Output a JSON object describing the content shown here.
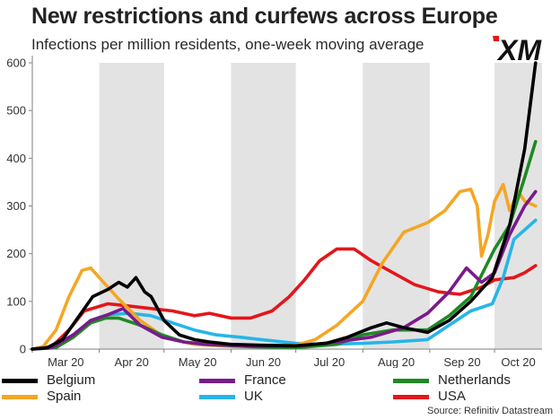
{
  "title": "New restrictions and curfews across Europe",
  "subtitle": "Infections per million residents, one-week moving average",
  "logo_text": "XM",
  "source": "Source: Refinitiv Datastream",
  "colors": {
    "Belgium": "#000000",
    "France": "#7a1a8c",
    "Netherlands": "#1e8a24",
    "Spain": "#f5a623",
    "UK": "#27b5e8",
    "USA": "#e3161b",
    "shade": "#e3e3e3",
    "axis": "#7f7f7f"
  },
  "chart_data": {
    "type": "line",
    "title": "New restrictions and curfews across Europe",
    "subtitle": "Infections per million residents, one-week moving average",
    "xlabel": "",
    "ylabel": "",
    "x_tick_labels": [
      "Mar 20",
      "Apr 20",
      "May 20",
      "Jun 20",
      "Jul 20",
      "Aug 20",
      "Sep 20",
      "Oct 20"
    ],
    "ylim": [
      0,
      600
    ],
    "y_ticks": [
      0,
      100,
      200,
      300,
      400,
      500,
      600
    ],
    "legend_position": "bottom",
    "shaded_months": [
      "Apr 20",
      "Jun 20",
      "Aug 20",
      "Oct 20"
    ],
    "series": [
      {
        "name": "Belgium",
        "points": [
          [
            "2020-03-01",
            0
          ],
          [
            "2020-03-08",
            3
          ],
          [
            "2020-03-15",
            20
          ],
          [
            "2020-03-22",
            65
          ],
          [
            "2020-03-29",
            110
          ],
          [
            "2020-04-05",
            125
          ],
          [
            "2020-04-10",
            140
          ],
          [
            "2020-04-14",
            130
          ],
          [
            "2020-04-18",
            150
          ],
          [
            "2020-04-22",
            120
          ],
          [
            "2020-04-25",
            110
          ],
          [
            "2020-05-01",
            60
          ],
          [
            "2020-05-08",
            30
          ],
          [
            "2020-05-15",
            20
          ],
          [
            "2020-05-22",
            15
          ],
          [
            "2020-06-01",
            10
          ],
          [
            "2020-06-15",
            8
          ],
          [
            "2020-07-01",
            7
          ],
          [
            "2020-07-15",
            12
          ],
          [
            "2020-07-25",
            25
          ],
          [
            "2020-08-05",
            45
          ],
          [
            "2020-08-12",
            55
          ],
          [
            "2020-08-20",
            45
          ],
          [
            "2020-08-31",
            35
          ],
          [
            "2020-09-10",
            60
          ],
          [
            "2020-09-20",
            100
          ],
          [
            "2020-09-30",
            150
          ],
          [
            "2020-10-08",
            260
          ],
          [
            "2020-10-15",
            420
          ],
          [
            "2020-10-20",
            600
          ]
        ]
      },
      {
        "name": "France",
        "points": [
          [
            "2020-03-01",
            0
          ],
          [
            "2020-03-10",
            3
          ],
          [
            "2020-03-20",
            30
          ],
          [
            "2020-03-28",
            60
          ],
          [
            "2020-04-05",
            72
          ],
          [
            "2020-04-12",
            85
          ],
          [
            "2020-04-20",
            50
          ],
          [
            "2020-04-30",
            25
          ],
          [
            "2020-05-10",
            15
          ],
          [
            "2020-05-20",
            10
          ],
          [
            "2020-06-10",
            6
          ],
          [
            "2020-07-01",
            6
          ],
          [
            "2020-07-20",
            15
          ],
          [
            "2020-08-05",
            25
          ],
          [
            "2020-08-20",
            45
          ],
          [
            "2020-08-31",
            75
          ],
          [
            "2020-09-10",
            120
          ],
          [
            "2020-09-18",
            170
          ],
          [
            "2020-09-25",
            140
          ],
          [
            "2020-10-01",
            160
          ],
          [
            "2020-10-08",
            240
          ],
          [
            "2020-10-15",
            300
          ],
          [
            "2020-10-20",
            330
          ]
        ]
      },
      {
        "name": "Netherlands",
        "points": [
          [
            "2020-03-01",
            0
          ],
          [
            "2020-03-12",
            3
          ],
          [
            "2020-03-20",
            25
          ],
          [
            "2020-03-28",
            55
          ],
          [
            "2020-04-04",
            65
          ],
          [
            "2020-04-10",
            65
          ],
          [
            "2020-04-20",
            50
          ],
          [
            "2020-04-30",
            30
          ],
          [
            "2020-05-10",
            15
          ],
          [
            "2020-05-20",
            10
          ],
          [
            "2020-06-10",
            5
          ],
          [
            "2020-07-01",
            3
          ],
          [
            "2020-07-20",
            10
          ],
          [
            "2020-08-01",
            30
          ],
          [
            "2020-08-15",
            40
          ],
          [
            "2020-08-31",
            40
          ],
          [
            "2020-09-10",
            70
          ],
          [
            "2020-09-20",
            110
          ],
          [
            "2020-10-01",
            210
          ],
          [
            "2020-10-08",
            260
          ],
          [
            "2020-10-15",
            360
          ],
          [
            "2020-10-20",
            435
          ]
        ]
      },
      {
        "name": "Spain",
        "points": [
          [
            "2020-03-01",
            0
          ],
          [
            "2020-03-06",
            5
          ],
          [
            "2020-03-12",
            40
          ],
          [
            "2020-03-18",
            110
          ],
          [
            "2020-03-24",
            165
          ],
          [
            "2020-03-28",
            170
          ],
          [
            "2020-04-03",
            140
          ],
          [
            "2020-04-10",
            105
          ],
          [
            "2020-04-20",
            60
          ],
          [
            "2020-05-01",
            25
          ],
          [
            "2020-05-15",
            10
          ],
          [
            "2020-06-01",
            6
          ],
          [
            "2020-06-15",
            6
          ],
          [
            "2020-07-01",
            8
          ],
          [
            "2020-07-10",
            20
          ],
          [
            "2020-07-20",
            50
          ],
          [
            "2020-08-01",
            100
          ],
          [
            "2020-08-10",
            180
          ],
          [
            "2020-08-20",
            245
          ],
          [
            "2020-08-31",
            265
          ],
          [
            "2020-09-08",
            290
          ],
          [
            "2020-09-15",
            330
          ],
          [
            "2020-09-20",
            335
          ],
          [
            "2020-09-23",
            300
          ],
          [
            "2020-09-25",
            195
          ],
          [
            "2020-09-28",
            240
          ],
          [
            "2020-10-01",
            310
          ],
          [
            "2020-10-05",
            345
          ],
          [
            "2020-10-08",
            290
          ],
          [
            "2020-10-12",
            330
          ],
          [
            "2020-10-15",
            310
          ],
          [
            "2020-10-20",
            300
          ]
        ]
      },
      {
        "name": "UK",
        "points": [
          [
            "2020-03-01",
            0
          ],
          [
            "2020-03-10",
            3
          ],
          [
            "2020-03-20",
            30
          ],
          [
            "2020-03-28",
            60
          ],
          [
            "2020-04-05",
            72
          ],
          [
            "2020-04-15",
            75
          ],
          [
            "2020-04-25",
            70
          ],
          [
            "2020-05-05",
            55
          ],
          [
            "2020-05-15",
            40
          ],
          [
            "2020-05-25",
            30
          ],
          [
            "2020-06-05",
            25
          ],
          [
            "2020-06-15",
            20
          ],
          [
            "2020-07-01",
            12
          ],
          [
            "2020-07-15",
            10
          ],
          [
            "2020-08-01",
            12
          ],
          [
            "2020-08-15",
            15
          ],
          [
            "2020-08-31",
            20
          ],
          [
            "2020-09-10",
            50
          ],
          [
            "2020-09-20",
            80
          ],
          [
            "2020-09-30",
            95
          ],
          [
            "2020-10-05",
            150
          ],
          [
            "2020-10-10",
            230
          ],
          [
            "2020-10-15",
            250
          ],
          [
            "2020-10-20",
            270
          ]
        ]
      },
      {
        "name": "USA",
        "points": [
          [
            "2020-03-01",
            0
          ],
          [
            "2020-03-10",
            5
          ],
          [
            "2020-03-18",
            40
          ],
          [
            "2020-03-25",
            80
          ],
          [
            "2020-04-05",
            95
          ],
          [
            "2020-04-15",
            90
          ],
          [
            "2020-04-25",
            85
          ],
          [
            "2020-05-05",
            80
          ],
          [
            "2020-05-15",
            70
          ],
          [
            "2020-05-22",
            75
          ],
          [
            "2020-06-01",
            65
          ],
          [
            "2020-06-10",
            65
          ],
          [
            "2020-06-20",
            80
          ],
          [
            "2020-06-28",
            110
          ],
          [
            "2020-07-05",
            145
          ],
          [
            "2020-07-12",
            185
          ],
          [
            "2020-07-20",
            210
          ],
          [
            "2020-07-28",
            210
          ],
          [
            "2020-08-05",
            185
          ],
          [
            "2020-08-15",
            160
          ],
          [
            "2020-08-25",
            135
          ],
          [
            "2020-09-05",
            120
          ],
          [
            "2020-09-15",
            115
          ],
          [
            "2020-09-25",
            130
          ],
          [
            "2020-10-01",
            145
          ],
          [
            "2020-10-10",
            150
          ],
          [
            "2020-10-15",
            160
          ],
          [
            "2020-10-20",
            175
          ]
        ]
      }
    ]
  },
  "legend": [
    {
      "label": "Belgium",
      "color": "#000000"
    },
    {
      "label": "France",
      "color": "#7a1a8c"
    },
    {
      "label": "Netherlands",
      "color": "#1e8a24"
    },
    {
      "label": "Spain",
      "color": "#f5a623"
    },
    {
      "label": "UK",
      "color": "#27b5e8"
    },
    {
      "label": "USA",
      "color": "#e3161b"
    }
  ]
}
